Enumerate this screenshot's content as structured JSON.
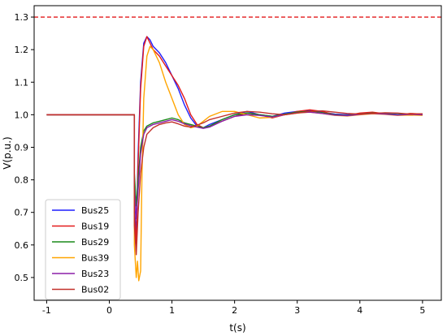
{
  "chart_data": {
    "type": "line",
    "xlabel": "t(s)",
    "ylabel": "V(p.u.)",
    "xlim": [
      -1.2,
      5.3
    ],
    "ylim": [
      0.43,
      1.335
    ],
    "xticks": [
      "-1",
      "0",
      "1",
      "2",
      "3",
      "4",
      "5"
    ],
    "yticks": [
      "0.5",
      "0.6",
      "0.7",
      "0.8",
      "0.9",
      "1.0",
      "1.1",
      "1.2",
      "1.3"
    ],
    "grid": false,
    "legend_position": "lower-left",
    "reference_line": {
      "y": 1.3,
      "color": "#e31a1c",
      "style": "dashed"
    },
    "series": [
      {
        "name": "Bus25",
        "color": "#1f1fff",
        "x": [
          -1.0,
          0.4,
          0.4,
          0.43,
          0.46,
          0.5,
          0.55,
          0.6,
          0.65,
          0.7,
          0.8,
          0.9,
          1.0,
          1.1,
          1.2,
          1.3,
          1.4,
          1.5,
          1.6,
          1.8,
          2.0,
          2.2,
          2.4,
          2.6,
          2.8,
          3.0,
          3.2,
          3.4,
          3.6,
          3.8,
          4.0,
          4.2,
          4.4,
          4.6,
          4.8,
          5.0
        ],
        "y": [
          1.0,
          1.0,
          0.72,
          0.63,
          0.88,
          1.1,
          1.22,
          1.24,
          1.23,
          1.21,
          1.19,
          1.16,
          1.12,
          1.08,
          1.03,
          0.99,
          0.965,
          0.96,
          0.97,
          0.985,
          1.0,
          1.01,
          1.0,
          0.995,
          1.005,
          1.01,
          1.012,
          1.008,
          1.002,
          1.0,
          1.003,
          1.006,
          1.004,
          1.001,
          1.003,
          1.002
        ]
      },
      {
        "name": "Bus19",
        "color": "#e31a1c",
        "x": [
          -1.0,
          0.4,
          0.4,
          0.43,
          0.46,
          0.5,
          0.55,
          0.6,
          0.65,
          0.7,
          0.8,
          0.9,
          1.0,
          1.1,
          1.2,
          1.3,
          1.4,
          1.5,
          1.6,
          1.8,
          2.0,
          2.2,
          2.4,
          2.6,
          2.8,
          3.0,
          3.2,
          3.4,
          3.6,
          3.8,
          4.0,
          4.2,
          4.4,
          4.6,
          4.8,
          5.0
        ],
        "y": [
          1.0,
          1.0,
          0.7,
          0.6,
          0.85,
          1.08,
          1.21,
          1.24,
          1.22,
          1.2,
          1.18,
          1.15,
          1.12,
          1.09,
          1.05,
          1.0,
          0.97,
          0.96,
          0.965,
          0.98,
          0.995,
          1.005,
          1.0,
          0.99,
          1.0,
          1.01,
          1.015,
          1.01,
          1.0,
          0.998,
          1.005,
          1.008,
          1.003,
          0.999,
          1.004,
          1.002
        ]
      },
      {
        "name": "Bus29",
        "color": "#1a8a1a",
        "x": [
          -1.0,
          0.4,
          0.4,
          0.43,
          0.46,
          0.5,
          0.55,
          0.6,
          0.7,
          0.8,
          0.9,
          1.0,
          1.1,
          1.2,
          1.3,
          1.4,
          1.5,
          1.6,
          1.8,
          2.0,
          2.2,
          2.4,
          2.6,
          2.8,
          3.0,
          3.2,
          3.4,
          3.6,
          3.8,
          4.0,
          4.2,
          4.4,
          4.6,
          4.8,
          5.0
        ],
        "y": [
          1.0,
          1.0,
          0.82,
          0.72,
          0.8,
          0.9,
          0.95,
          0.965,
          0.975,
          0.98,
          0.985,
          0.99,
          0.985,
          0.975,
          0.97,
          0.965,
          0.96,
          0.965,
          0.985,
          1.0,
          1.005,
          1.0,
          0.995,
          1.002,
          1.008,
          1.01,
          1.006,
          1.0,
          0.998,
          1.002,
          1.005,
          1.003,
          1.0,
          1.002,
          1.001
        ]
      },
      {
        "name": "Bus39",
        "color": "#ffa500",
        "x": [
          -1.0,
          0.4,
          0.4,
          0.43,
          0.45,
          0.47,
          0.5,
          0.52,
          0.55,
          0.6,
          0.65,
          0.7,
          0.8,
          0.9,
          1.0,
          1.1,
          1.2,
          1.3,
          1.4,
          1.5,
          1.6,
          1.8,
          2.0,
          2.2,
          2.4,
          2.6,
          2.8,
          3.0,
          3.2,
          3.4,
          3.6,
          3.8,
          4.0,
          4.2,
          4.4,
          4.6,
          4.8,
          5.0
        ],
        "y": [
          1.0,
          1.0,
          0.6,
          0.5,
          0.55,
          0.49,
          0.52,
          0.8,
          1.05,
          1.18,
          1.21,
          1.2,
          1.16,
          1.1,
          1.05,
          1.0,
          0.97,
          0.96,
          0.965,
          0.98,
          0.995,
          1.01,
          1.01,
          1.0,
          0.99,
          0.992,
          1.0,
          1.005,
          1.008,
          1.004,
          0.998,
          0.996,
          1.0,
          1.003,
          1.001,
          0.998,
          0.999,
          0.998
        ]
      },
      {
        "name": "Bus23",
        "color": "#8b1fa8",
        "x": [
          -1.0,
          0.4,
          0.4,
          0.43,
          0.46,
          0.5,
          0.55,
          0.6,
          0.7,
          0.8,
          0.9,
          1.0,
          1.1,
          1.2,
          1.3,
          1.4,
          1.5,
          1.6,
          1.8,
          2.0,
          2.2,
          2.4,
          2.6,
          2.8,
          3.0,
          3.2,
          3.4,
          3.6,
          3.8,
          4.0,
          4.2,
          4.4,
          4.6,
          4.8,
          5.0
        ],
        "y": [
          1.0,
          1.0,
          0.78,
          0.68,
          0.77,
          0.88,
          0.94,
          0.96,
          0.97,
          0.975,
          0.98,
          0.985,
          0.98,
          0.972,
          0.966,
          0.962,
          0.958,
          0.962,
          0.98,
          0.995,
          1.0,
          0.998,
          0.993,
          1.0,
          1.006,
          1.008,
          1.004,
          0.999,
          0.997,
          1.001,
          1.004,
          1.002,
          0.999,
          1.001,
          1.0
        ]
      },
      {
        "name": "Bus02",
        "color": "#c2302a",
        "x": [
          -1.0,
          0.4,
          0.4,
          0.43,
          0.46,
          0.5,
          0.55,
          0.6,
          0.7,
          0.8,
          0.9,
          1.0,
          1.1,
          1.2,
          1.3,
          1.4,
          1.5,
          1.6,
          1.8,
          2.0,
          2.2,
          2.4,
          2.6,
          2.8,
          3.0,
          3.2,
          3.4,
          3.6,
          3.8,
          4.0,
          4.2,
          4.4,
          4.6,
          4.8,
          5.0
        ],
        "y": [
          1.0,
          1.0,
          0.66,
          0.57,
          0.7,
          0.82,
          0.9,
          0.94,
          0.96,
          0.97,
          0.975,
          0.978,
          0.972,
          0.965,
          0.962,
          0.968,
          0.975,
          0.985,
          0.995,
          1.005,
          1.01,
          1.008,
          1.003,
          1.0,
          1.005,
          1.01,
          1.012,
          1.008,
          1.004,
          1.002,
          1.004,
          1.006,
          1.005,
          1.002,
          1.003
        ]
      }
    ]
  }
}
